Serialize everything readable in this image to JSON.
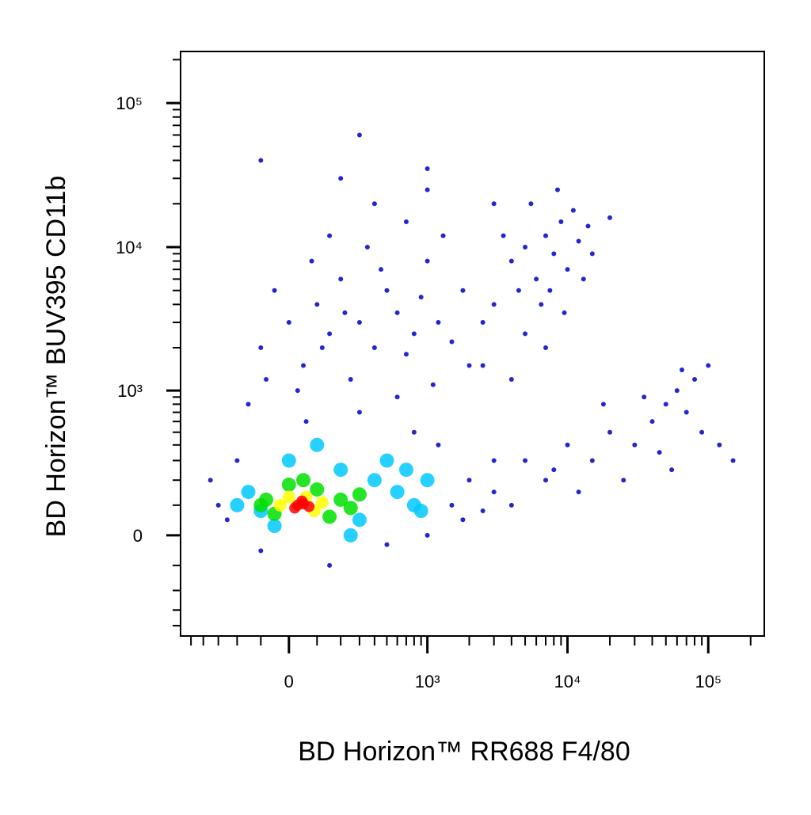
{
  "chart_data": {
    "type": "scatter",
    "x_label": "BD Horizon™ RR688 F4/80",
    "y_label": "BD Horizon™ BUV395 CD11b",
    "x_scale": "biexponential",
    "y_scale": "biexponential",
    "xlim": [
      -600,
      250000
    ],
    "ylim": [
      -480,
      228000
    ],
    "xticks": [
      0,
      {
        "value": 1000,
        "label": "10³"
      },
      {
        "value": 10000,
        "label": "10⁴"
      },
      {
        "value": 100000,
        "label": "10⁵"
      }
    ],
    "yticks": [
      0,
      {
        "value": 1000,
        "label": "10³"
      },
      {
        "value": 10000,
        "label": "10⁴"
      },
      {
        "value": 100000,
        "label": "10⁵"
      }
    ],
    "xminorticks": [
      -500,
      -400,
      -300,
      -200,
      -100,
      100,
      200,
      300,
      400,
      500,
      600,
      700,
      800,
      900,
      2000,
      3000,
      4000,
      5000,
      6000,
      7000,
      8000,
      9000,
      20000,
      30000,
      40000,
      50000,
      60000,
      70000,
      80000,
      90000,
      200000
    ],
    "yminorticks": [
      -400,
      -300,
      -200,
      -100,
      100,
      200,
      300,
      400,
      500,
      600,
      700,
      800,
      900,
      2000,
      3000,
      4000,
      5000,
      6000,
      7000,
      8000,
      9000,
      20000,
      30000,
      40000,
      50000,
      60000,
      70000,
      80000,
      90000,
      200000
    ],
    "series": [
      {
        "color": "#0000c8",
        "x": [
          -100,
          0,
          50,
          100,
          150,
          200,
          300,
          400,
          500,
          250,
          80,
          -50,
          350,
          600,
          700,
          150,
          450,
          800,
          30,
          120,
          220,
          -80,
          900,
          1000,
          1200,
          1500,
          1800,
          2000,
          2500,
          1300,
          700,
          400,
          200,
          1000,
          3000,
          60,
          -150,
          300,
          600,
          1100,
          4000,
          5000,
          6000,
          7000,
          8000,
          9000,
          10000,
          12000,
          14000,
          6500,
          5500,
          7500,
          11000,
          9500,
          4500,
          15000,
          3500,
          13000,
          8500,
          20000,
          3000,
          5000,
          7000,
          2500,
          4000,
          5000,
          8000,
          10000,
          15000,
          20000,
          30000,
          40000,
          50000,
          60000,
          70000,
          80000,
          45000,
          25000,
          35000,
          90000,
          100000,
          65000,
          12000,
          7000,
          3000,
          18000,
          55000,
          -300,
          -250,
          -200,
          1500,
          2000,
          2500,
          3000,
          1200,
          -350,
          800,
          1000,
          -100,
          500,
          1800,
          4000,
          150,
          -100,
          300,
          1000,
          120000,
          150000
        ],
        "values": [
          2000,
          3000,
          1500,
          4000,
          2500,
          6000,
          3000,
          2000,
          5000,
          1200,
          8000,
          5000,
          10000,
          3500,
          1800,
          12000,
          7000,
          2500,
          1000,
          2000,
          3500,
          1200,
          4500,
          8000,
          3000,
          2200,
          5000,
          1500,
          3000,
          12000,
          15000,
          20000,
          30000,
          25000,
          20000,
          600,
          800,
          700,
          900,
          1100,
          8000,
          10000,
          6000,
          12000,
          9000,
          15000,
          7000,
          11000,
          14000,
          4000,
          20000,
          5000,
          18000,
          3500,
          5000,
          9000,
          12000,
          6000,
          25000,
          16000,
          4000,
          2500,
          2000,
          1500,
          1200,
          300,
          250,
          400,
          300,
          500,
          400,
          600,
          800,
          1000,
          700,
          1200,
          350,
          200,
          900,
          500,
          1500,
          1400,
          150,
          200,
          150,
          800,
          250,
          100,
          50,
          300,
          100,
          200,
          80,
          300,
          400,
          200,
          500,
          0,
          -50,
          -30,
          50,
          100,
          -100,
          40000,
          60000,
          35000,
          400,
          300
        ]
      },
      {
        "color": "#00c8ff",
        "x": [
          -150,
          -100,
          0,
          200,
          400,
          600,
          800,
          300,
          -200,
          100,
          500,
          1000,
          700,
          -50,
          250,
          900
        ],
        "values": [
          150,
          80,
          300,
          250,
          200,
          150,
          100,
          50,
          100,
          400,
          300,
          200,
          250,
          30,
          0,
          80
        ]
      },
      {
        "color": "#00e000",
        "x": [
          -80,
          0,
          100,
          200,
          250,
          -50,
          150,
          50,
          300,
          -100
        ],
        "values": [
          120,
          180,
          160,
          120,
          90,
          70,
          60,
          200,
          140,
          100
        ]
      },
      {
        "color": "#ffff00",
        "x": [
          0,
          60,
          120,
          -30,
          90
        ],
        "values": [
          130,
          130,
          110,
          100,
          80
        ]
      },
      {
        "color": "#ff0000",
        "x": [
          30,
          50,
          70,
          20,
          45
        ],
        "values": [
          100,
          105,
          95,
          90,
          115
        ]
      }
    ]
  }
}
